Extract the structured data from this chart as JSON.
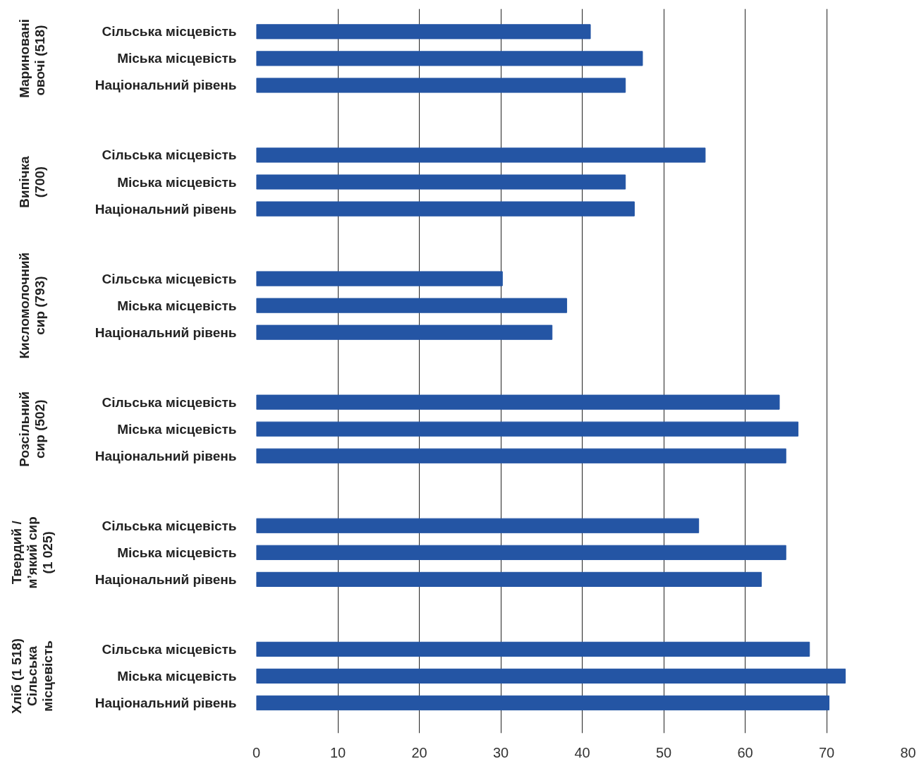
{
  "chart_data": {
    "type": "bar",
    "orientation": "horizontal",
    "categories": [
      "Сільська місцевість",
      "Міська місцевість",
      "Національний рівень",
      "Сільська місцевість",
      "Міська місцевість",
      "Національний рівень",
      "Сільська місцевість",
      "Міська місцевість",
      "Національний рівень",
      "Сільська місцевість",
      "Міська місцевість",
      "Національний рівень",
      "Сільська місцевість",
      "Міська місцевість",
      "Національний рівень",
      "Сільська місцевість",
      "Міська місцевість",
      "Національний рівень"
    ],
    "values": [
      41.0,
      47.4,
      45.3,
      55.1,
      45.3,
      46.4,
      30.2,
      38.1,
      36.3,
      64.2,
      66.5,
      65.0,
      54.3,
      65.0,
      62.0,
      67.9,
      72.3,
      70.3
    ],
    "color": "#2455a4",
    "xlim": [
      0,
      80
    ],
    "xticks": [
      0,
      10,
      20,
      30,
      40,
      50,
      60,
      70,
      80
    ],
    "grid": "x",
    "annotations": [
      "Мариновані\nовочі  (518)",
      "Випічка\n(700)",
      "Кисломолочний\nсир (793)",
      "Розсільний\nсир (502)",
      "Твердий /\nм’який сир\n(1 025)",
      "Хліб (1 518)\nСільська\nмісцевість"
    ]
  }
}
